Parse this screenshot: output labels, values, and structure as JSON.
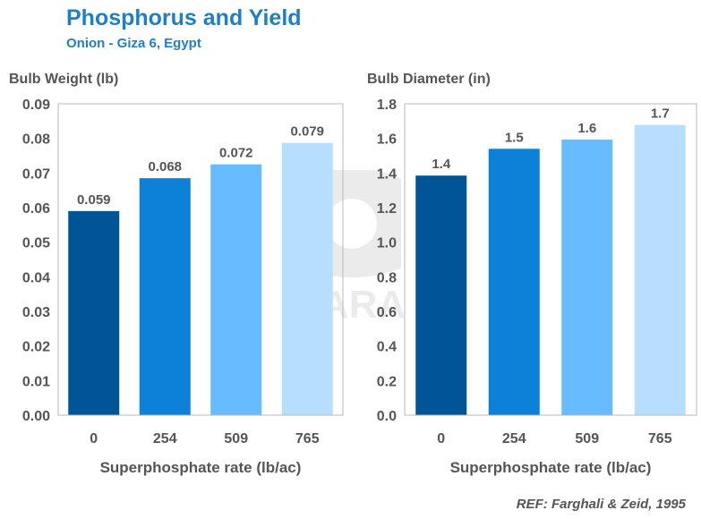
{
  "header": {
    "title": "Phosphorus and Yield",
    "subtitle": "Onion - Giza 6, Egypt"
  },
  "reference": "REF: Farghali & Zeid, 1995",
  "watermark": {
    "text": "YARA"
  },
  "colors": [
    "#005596",
    "#0d80d8",
    "#66bcff",
    "#b7dffd"
  ],
  "chart_data": [
    {
      "type": "bar",
      "title": "",
      "ylabel": "Bulb Weight (lb)",
      "xlabel": "Superphosphate rate (lb/ac)",
      "categories": [
        "0",
        "254",
        "509",
        "765"
      ],
      "values": [
        0.059,
        0.068,
        0.072,
        0.079
      ],
      "plot_values": [
        0.059,
        0.0685,
        0.0725,
        0.0787
      ],
      "data_labels": [
        "0.059",
        "0.068",
        "0.072",
        "0.079"
      ],
      "ylim": [
        0,
        0.09
      ],
      "yticks": [
        0,
        0.01,
        0.02,
        0.03,
        0.04,
        0.05,
        0.06,
        0.07,
        0.08,
        0.09
      ],
      "ytick_labels": [
        "0.00",
        "0.01",
        "0.02",
        "0.03",
        "0.04",
        "0.05",
        "0.06",
        "0.07",
        "0.08",
        "0.09"
      ],
      "grid": false,
      "legend": "none"
    },
    {
      "type": "bar",
      "title": "",
      "ylabel": "Bulb Diameter (in)",
      "xlabel": "Superphosphate  rate (lb/ac)",
      "categories": [
        "0",
        "254",
        "509",
        "765"
      ],
      "values": [
        1.4,
        1.5,
        1.6,
        1.7
      ],
      "plot_values": [
        1.385,
        1.54,
        1.593,
        1.678
      ],
      "data_labels": [
        "1.4",
        "1.5",
        "1.6",
        "1.7"
      ],
      "ylim": [
        0,
        1.8
      ],
      "yticks": [
        0,
        0.2,
        0.4,
        0.6,
        0.8,
        1.0,
        1.2,
        1.4,
        1.6,
        1.8
      ],
      "ytick_labels": [
        "0.0",
        "0.2",
        "0.4",
        "0.6",
        "0.8",
        "1.0",
        "1.2",
        "1.4",
        "1.6",
        "1.8"
      ],
      "grid": false,
      "legend": "none"
    }
  ]
}
